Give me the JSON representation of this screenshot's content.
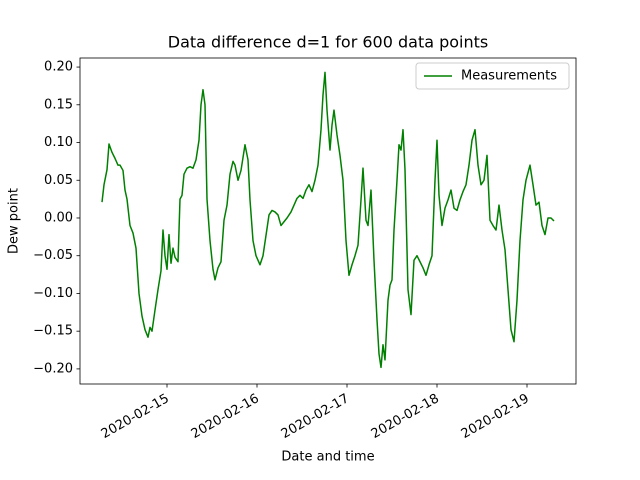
{
  "chart_data": {
    "type": "line",
    "title": "Data difference d=1 for 600 data points",
    "xlabel": "Date and time",
    "ylabel": "Dew point",
    "legend": "upper right",
    "xlim": [
      "2020-02-14 00:48",
      "2020-02-19 13:04"
    ],
    "xticks": [
      "2020-02-15",
      "2020-02-16",
      "2020-02-17",
      "2020-02-18",
      "2020-02-19"
    ],
    "ylim": [
      -0.22,
      0.212
    ],
    "yticks": [
      {
        "value": -0.2,
        "label": "−0.20"
      },
      {
        "value": -0.15,
        "label": "−0.15"
      },
      {
        "value": -0.1,
        "label": "−0.10"
      },
      {
        "value": -0.05,
        "label": "−0.05"
      },
      {
        "value": 0,
        "label": "0.00"
      },
      {
        "value": 0.05,
        "label": "0.05"
      },
      {
        "value": 0.1,
        "label": "0.10"
      },
      {
        "value": 0.15,
        "label": "0.15"
      },
      {
        "value": 0.2,
        "label": "0.20"
      }
    ],
    "x": [
      "2020-02-14 06:40",
      "2020-02-14 07:12",
      "2020-02-14 08:00",
      "2020-02-14 08:32",
      "2020-02-14 09:20",
      "2020-02-14 10:08",
      "2020-02-14 10:56",
      "2020-02-14 11:28",
      "2020-02-14 12:16",
      "2020-02-14 12:48",
      "2020-02-14 13:20",
      "2020-02-14 14:08",
      "2020-02-14 14:56",
      "2020-02-14 15:44",
      "2020-02-14 16:32",
      "2020-02-14 17:20",
      "2020-02-14 18:08",
      "2020-02-14 18:56",
      "2020-02-14 19:28",
      "2020-02-14 20:00",
      "2020-02-14 20:48",
      "2020-02-14 21:36",
      "2020-02-14 22:24",
      "2020-02-14 22:56",
      "2020-02-14 23:28",
      "2020-02-15 00:00",
      "2020-02-15 00:32",
      "2020-02-15 01:04",
      "2020-02-15 01:36",
      "2020-02-15 02:08",
      "2020-02-15 02:56",
      "2020-02-15 03:28",
      "2020-02-15 04:00",
      "2020-02-15 04:32",
      "2020-02-15 05:20",
      "2020-02-15 06:08",
      "2020-02-15 06:56",
      "2020-02-15 07:44",
      "2020-02-15 08:32",
      "2020-02-15 09:04",
      "2020-02-15 09:36",
      "2020-02-15 10:08",
      "2020-02-15 10:40",
      "2020-02-15 11:28",
      "2020-02-15 12:16",
      "2020-02-15 12:48",
      "2020-02-15 13:36",
      "2020-02-15 14:24",
      "2020-02-15 15:12",
      "2020-02-15 16:00",
      "2020-02-15 16:48",
      "2020-02-15 17:36",
      "2020-02-15 18:08",
      "2020-02-15 18:56",
      "2020-02-15 19:44",
      "2020-02-15 20:48",
      "2020-02-15 21:36",
      "2020-02-15 22:08",
      "2020-02-15 22:56",
      "2020-02-15 23:44",
      "2020-02-16 00:48",
      "2020-02-16 01:36",
      "2020-02-16 02:24",
      "2020-02-16 03:12",
      "2020-02-16 04:00",
      "2020-02-16 04:48",
      "2020-02-16 05:36",
      "2020-02-16 06:24",
      "2020-02-16 07:12",
      "2020-02-16 08:00",
      "2020-02-16 09:04",
      "2020-02-16 09:52",
      "2020-02-16 10:40",
      "2020-02-16 11:28",
      "2020-02-16 12:16",
      "2020-02-16 13:04",
      "2020-02-16 13:52",
      "2020-02-16 14:40",
      "2020-02-16 15:28",
      "2020-02-16 16:16",
      "2020-02-16 17:04",
      "2020-02-16 17:36",
      "2020-02-16 18:08",
      "2020-02-16 18:40",
      "2020-02-16 19:28",
      "2020-02-16 20:00",
      "2020-02-16 20:32",
      "2020-02-16 21:20",
      "2020-02-16 22:08",
      "2020-02-16 22:56",
      "2020-02-16 23:44",
      "2020-02-17 00:32",
      "2020-02-17 01:20",
      "2020-02-17 02:08",
      "2020-02-17 02:56",
      "2020-02-17 03:44",
      "2020-02-17 04:16",
      "2020-02-17 05:04",
      "2020-02-17 05:36",
      "2020-02-17 06:24",
      "2020-02-17 07:12",
      "2020-02-17 08:00",
      "2020-02-17 08:32",
      "2020-02-17 09:04",
      "2020-02-17 09:36",
      "2020-02-17 10:08",
      "2020-02-17 10:56",
      "2020-02-17 11:28",
      "2020-02-17 12:00",
      "2020-02-17 12:32",
      "2020-02-17 13:20",
      "2020-02-17 13:52",
      "2020-02-17 14:24",
      "2020-02-17 14:56",
      "2020-02-17 15:28",
      "2020-02-17 16:16",
      "2020-02-17 17:04",
      "2020-02-17 17:52",
      "2020-02-17 18:40",
      "2020-02-17 19:28",
      "2020-02-17 20:16",
      "2020-02-17 21:04",
      "2020-02-17 21:52",
      "2020-02-17 22:40",
      "2020-02-17 23:28",
      "2020-02-18 00:00",
      "2020-02-18 00:32",
      "2020-02-18 01:20",
      "2020-02-18 02:08",
      "2020-02-18 02:56",
      "2020-02-18 03:44",
      "2020-02-18 04:32",
      "2020-02-18 05:20",
      "2020-02-18 06:08",
      "2020-02-18 06:56",
      "2020-02-18 07:44",
      "2020-02-18 08:32",
      "2020-02-18 09:20",
      "2020-02-18 10:08",
      "2020-02-18 10:56",
      "2020-02-18 11:44",
      "2020-02-18 12:32",
      "2020-02-18 13:20",
      "2020-02-18 14:08",
      "2020-02-18 14:56",
      "2020-02-18 15:44",
      "2020-02-18 16:32",
      "2020-02-18 17:20",
      "2020-02-18 18:08",
      "2020-02-18 18:56",
      "2020-02-18 19:44",
      "2020-02-18 20:32",
      "2020-02-18 21:20",
      "2020-02-18 22:08",
      "2020-02-18 22:56",
      "2020-02-18 23:44",
      "2020-02-19 00:48",
      "2020-02-19 01:36",
      "2020-02-19 02:24",
      "2020-02-19 03:12",
      "2020-02-19 04:00",
      "2020-02-19 04:48",
      "2020-02-19 05:36",
      "2020-02-19 06:24",
      "2020-02-19 07:12"
    ],
    "series": [
      {
        "name": "Measurements",
        "color": "green",
        "values": [
          0.021,
          0.044,
          0.064,
          0.098,
          0.087,
          0.079,
          0.07,
          0.07,
          0.063,
          0.037,
          0.025,
          -0.01,
          -0.02,
          -0.04,
          -0.1,
          -0.13,
          -0.148,
          -0.158,
          -0.145,
          -0.15,
          -0.122,
          -0.095,
          -0.07,
          -0.016,
          -0.05,
          -0.068,
          -0.022,
          -0.06,
          -0.04,
          -0.052,
          -0.058,
          0.025,
          0.03,
          0.058,
          0.066,
          0.068,
          0.066,
          0.077,
          0.103,
          0.15,
          0.17,
          0.15,
          0.025,
          -0.03,
          -0.068,
          -0.082,
          -0.066,
          -0.058,
          -0.003,
          0.017,
          0.058,
          0.075,
          0.07,
          0.05,
          0.063,
          0.097,
          0.077,
          0.024,
          -0.03,
          -0.05,
          -0.062,
          -0.05,
          -0.023,
          0.004,
          0.01,
          0.008,
          0.004,
          -0.01,
          -0.005,
          0,
          0.008,
          0.017,
          0.026,
          0.03,
          0.026,
          0.037,
          0.044,
          0.035,
          0.05,
          0.07,
          0.117,
          0.163,
          0.193,
          0.143,
          0.09,
          0.123,
          0.143,
          0.11,
          0.083,
          0.05,
          -0.03,
          -0.076,
          -0.062,
          -0.05,
          -0.036,
          0.024,
          0.066,
          -0.003,
          -0.01,
          0.037,
          -0.056,
          -0.135,
          -0.18,
          -0.198,
          -0.168,
          -0.188,
          -0.109,
          -0.089,
          -0.082,
          -0.016,
          0.05,
          0.097,
          0.09,
          0.117,
          0.064,
          -0.095,
          -0.128,
          -0.056,
          -0.05,
          -0.058,
          -0.066,
          -0.076,
          -0.062,
          -0.05,
          0.05,
          0.103,
          0.03,
          -0.01,
          0.013,
          0.024,
          0.037,
          0.013,
          0.01,
          0.024,
          0.035,
          0.044,
          0.07,
          0.103,
          0.117,
          0.07,
          0.044,
          0.05,
          0.083,
          -0.003,
          -0.01,
          -0.016,
          0.017,
          -0.016,
          -0.042,
          -0.095,
          -0.148,
          -0.164,
          -0.109,
          -0.03,
          0.024,
          0.05,
          0.07,
          0.044,
          0.017,
          0.021,
          -0.01,
          -0.022,
          0,
          0,
          -0.004
        ]
      }
    ]
  }
}
